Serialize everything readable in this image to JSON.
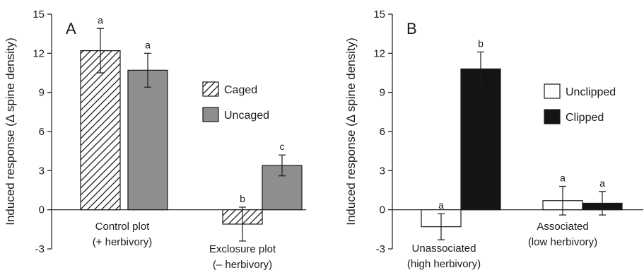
{
  "chart_data": [
    {
      "type": "bar",
      "panel": "A",
      "ylabel": "Induced response (Δ spine density)",
      "ylim": [
        -3,
        15
      ],
      "yticks": [
        "-3",
        "0",
        "3",
        "6",
        "9",
        "12",
        "15"
      ],
      "categories": [
        {
          "line1": "Control plot",
          "line2": "(+ herbivory)"
        },
        {
          "line1": "Exclosure plot",
          "line2": "(– herbivory)"
        }
      ],
      "series": [
        {
          "name": "Caged",
          "style": "hatched",
          "values": [
            12.2,
            -1.1
          ],
          "err": [
            1.7,
            1.3
          ],
          "letters": [
            "a",
            "b"
          ]
        },
        {
          "name": "Uncaged",
          "style": "gray",
          "values": [
            10.7,
            3.4
          ],
          "err": [
            1.3,
            0.8
          ],
          "letters": [
            "a",
            "c"
          ]
        }
      ],
      "legend": "center-right",
      "grid": false
    },
    {
      "type": "bar",
      "panel": "B",
      "ylabel": "Induced response (Δ spine density)",
      "ylim": [
        -3,
        15
      ],
      "yticks": [
        "-3",
        "0",
        "3",
        "6",
        "9",
        "12",
        "15"
      ],
      "categories": [
        {
          "line1": "Unassociated",
          "line2": "(high herbivory)"
        },
        {
          "line1": "Associated",
          "line2": "(low herbivory)"
        }
      ],
      "series": [
        {
          "name": "Unclipped",
          "style": "white",
          "values": [
            -1.3,
            0.7
          ],
          "err": [
            1.0,
            1.1
          ],
          "letters": [
            "a",
            "a"
          ]
        },
        {
          "name": "Clipped",
          "style": "black",
          "values": [
            10.8,
            0.5
          ],
          "err": [
            1.3,
            0.9
          ],
          "letters": [
            "b",
            "a"
          ]
        }
      ],
      "legend": "center-right",
      "grid": false
    }
  ],
  "colors": {
    "axis": "#1a1a1a",
    "gray_bar": "#8e8e8e",
    "black_bar": "#141414",
    "white_bar": "#ffffff"
  }
}
